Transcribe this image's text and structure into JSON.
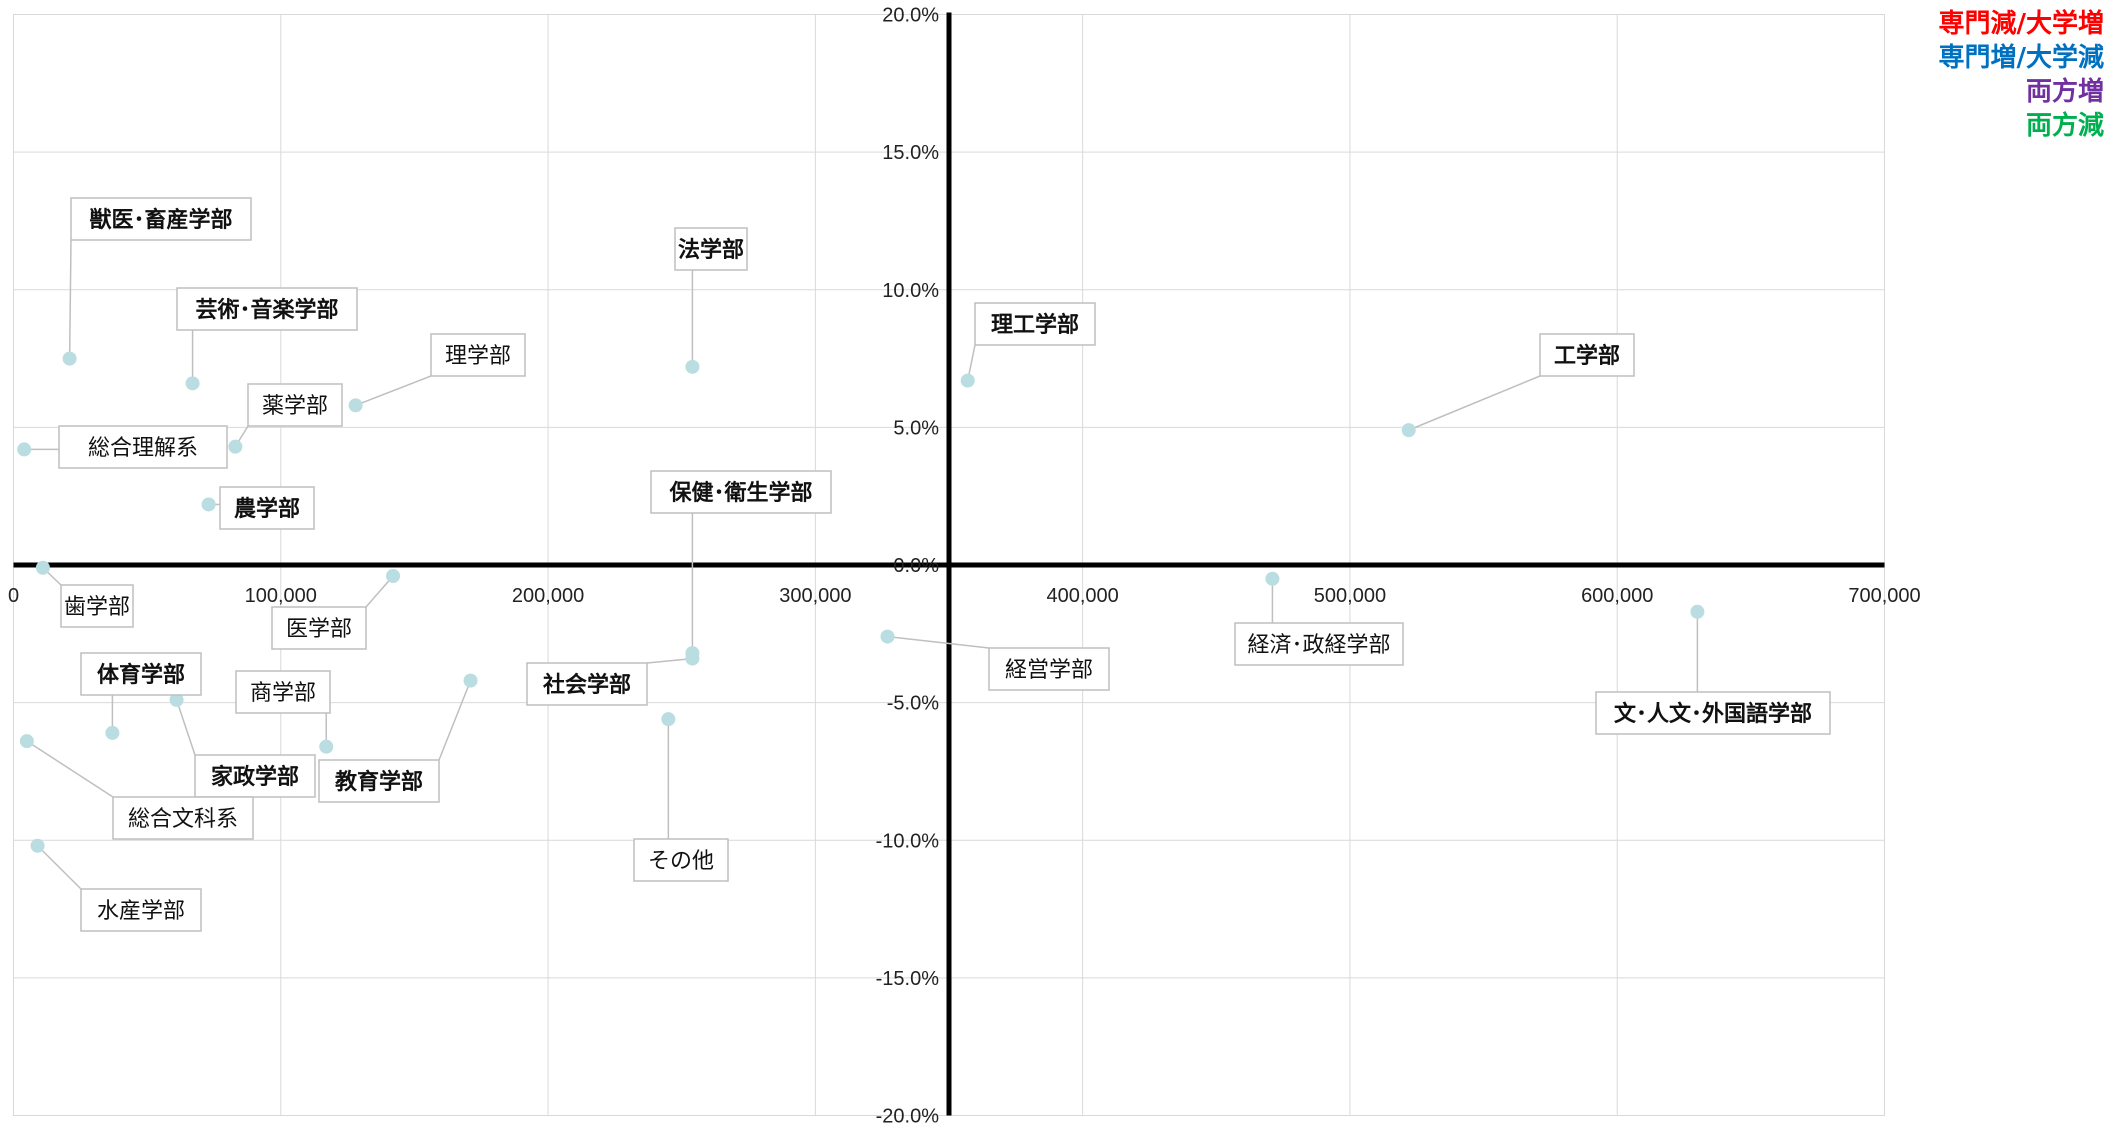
{
  "chart_data": {
    "type": "scatter",
    "xlim": [
      0,
      700000
    ],
    "ylim": [
      -20,
      20
    ],
    "x_ticks": [
      {
        "v": 0,
        "label": "0"
      },
      {
        "v": 100000,
        "label": "100,000"
      },
      {
        "v": 200000,
        "label": "200,000"
      },
      {
        "v": 300000,
        "label": "300,000"
      },
      {
        "v": 400000,
        "label": "400,000"
      },
      {
        "v": 500000,
        "label": "500,000"
      },
      {
        "v": 600000,
        "label": "600,000"
      },
      {
        "v": 700000,
        "label": "700,000"
      }
    ],
    "y_ticks": [
      {
        "v": 20,
        "label": "20.0%"
      },
      {
        "v": 15,
        "label": "15.0%"
      },
      {
        "v": 10,
        "label": "10.0%"
      },
      {
        "v": 5,
        "label": "5.0%"
      },
      {
        "v": 0,
        "label": "0.0%"
      },
      {
        "v": -5,
        "label": "-5.0%"
      },
      {
        "v": -10,
        "label": "-10.0%"
      },
      {
        "v": -15,
        "label": "-15.0%"
      },
      {
        "v": -20,
        "label": "-20.0%"
      }
    ],
    "y_axis_crosses_x": 350000,
    "x_axis_crosses_y": 0,
    "grid": true,
    "marker_color": "#b9dde0",
    "legend_placement": "top-right",
    "legend": [
      {
        "label": "専門減/大学増",
        "color": "#ff0000"
      },
      {
        "label": "専門増/大学減",
        "color": "#0070c0"
      },
      {
        "label": "両方増",
        "color": "#7030a0"
      },
      {
        "label": "両方減",
        "color": "#00b050"
      }
    ],
    "points": [
      {
        "label": "獣医･畜産学部",
        "x": 21000,
        "y": 7.5,
        "color": "#7030a0"
      },
      {
        "label": "芸術･音楽学部",
        "x": 67000,
        "y": 6.6,
        "color": "#ff0000"
      },
      {
        "label": "理学部",
        "x": 128000,
        "y": 5.8,
        "color": "#000000"
      },
      {
        "label": "薬学部",
        "x": 83000,
        "y": 4.3,
        "color": "#000000"
      },
      {
        "label": "総合理解系",
        "x": 4000,
        "y": 4.2,
        "color": "#000000"
      },
      {
        "label": "農学部",
        "x": 73000,
        "y": 2.2,
        "color": "#ff0000"
      },
      {
        "label": "法学部",
        "x": 254000,
        "y": 7.2,
        "color": "#ff0000"
      },
      {
        "label": "理工学部",
        "x": 357000,
        "y": 6.7,
        "color": "#ff0000"
      },
      {
        "label": "工学部",
        "x": 522000,
        "y": 4.9,
        "color": "#ff0000"
      },
      {
        "label": "保健･衛生学部",
        "x": 254000,
        "y": -3.2,
        "color": "#0070c0"
      },
      {
        "label": "歯学部",
        "x": 11000,
        "y": -0.1,
        "color": "#000000"
      },
      {
        "label": "医学部",
        "x": 142000,
        "y": -0.4,
        "color": "#000000"
      },
      {
        "label": "経済･政経学部",
        "x": 471000,
        "y": -0.5,
        "color": "#000000"
      },
      {
        "label": "文･人文･外国語学部",
        "x": 630000,
        "y": -1.7,
        "color": "#00b050"
      },
      {
        "label": "経営学部",
        "x": 327000,
        "y": -2.6,
        "color": "#000000"
      },
      {
        "label": "社会学部",
        "x": 254000,
        "y": -3.4,
        "color": "#00b050"
      },
      {
        "label": "体育学部",
        "x": 37000,
        "y": -6.1,
        "color": "#00b050"
      },
      {
        "label": "家政学部",
        "x": 61000,
        "y": -4.9,
        "color": "#00b050"
      },
      {
        "label": "商学部",
        "x": 117000,
        "y": -6.6,
        "color": "#000000"
      },
      {
        "label": "教育学部",
        "x": 171000,
        "y": -4.2,
        "color": "#00b050"
      },
      {
        "label": "総合文科系",
        "x": 5000,
        "y": -6.4,
        "color": "#000000"
      },
      {
        "label": "その他",
        "x": 245000,
        "y": -5.6,
        "color": "#000000"
      },
      {
        "label": "水産学部",
        "x": 9000,
        "y": -10.2,
        "color": "#000000"
      }
    ]
  }
}
